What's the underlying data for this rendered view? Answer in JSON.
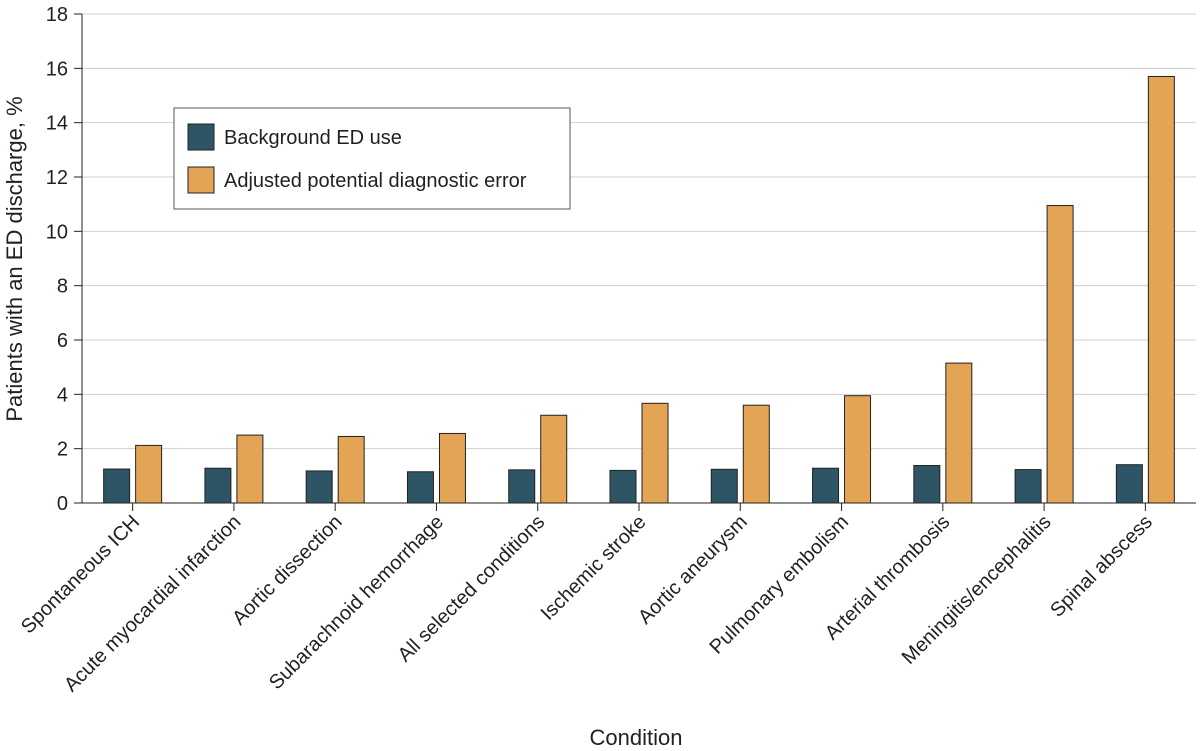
{
  "chart_data": {
    "type": "bar",
    "title": "",
    "xlabel": "Condition",
    "ylabel": "Patients with an ED discharge, %",
    "ylim": [
      0,
      18
    ],
    "yticks": [
      0,
      2,
      4,
      6,
      8,
      10,
      12,
      14,
      16,
      18
    ],
    "grid": "horizontal",
    "legend_position": "upper-left",
    "categories": [
      "Spontaneous ICH",
      "Acute myocardial infarction",
      "Aortic dissection",
      "Subarachnoid hemorrhage",
      "All selected conditions",
      "Ischemic stroke",
      "Aortic aneurysm",
      "Pulmonary embolism",
      "Arterial thrombosis",
      "Meningitis/encephalitis",
      "Spinal abscess"
    ],
    "series": [
      {
        "name": "Background ED use",
        "color": "#2d5566",
        "values": [
          1.25,
          1.28,
          1.18,
          1.15,
          1.22,
          1.2,
          1.24,
          1.28,
          1.38,
          1.23,
          1.41
        ]
      },
      {
        "name": "Adjusted potential diagnostic error",
        "color": "#e4a455",
        "values": [
          2.12,
          2.5,
          2.45,
          2.56,
          3.23,
          3.67,
          3.6,
          3.95,
          5.15,
          10.95,
          15.7
        ]
      }
    ]
  }
}
